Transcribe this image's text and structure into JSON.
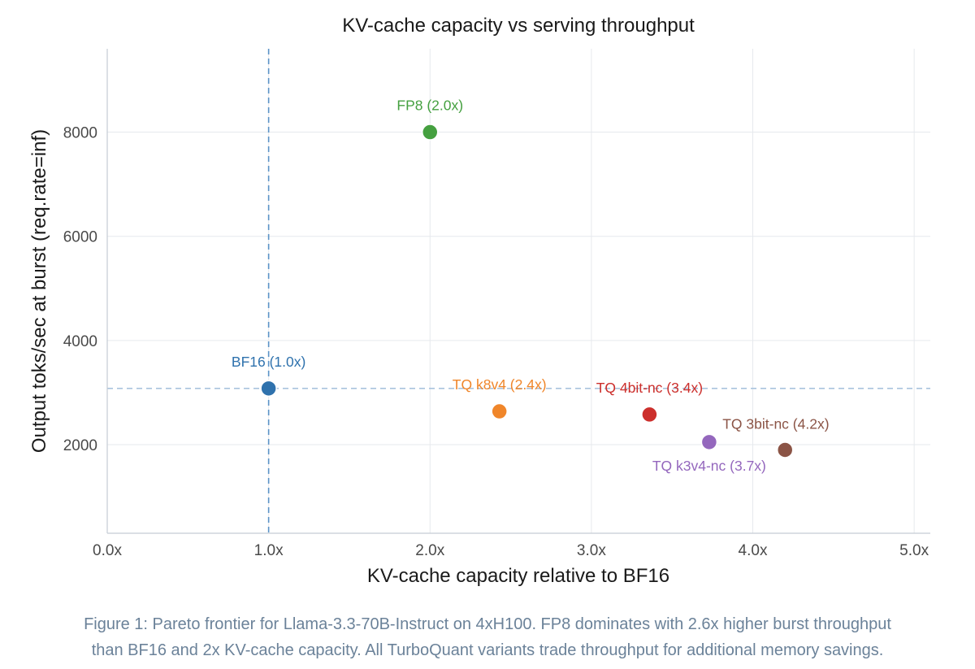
{
  "chart_data": {
    "type": "scatter",
    "title": "KV-cache capacity vs serving throughput",
    "xlabel": "KV-cache capacity relative to BF16",
    "ylabel": "Output toks/sec at burst (req.rate=inf)",
    "xlim": [
      0,
      5.1
    ],
    "ylim": [
      300,
      9600
    ],
    "x_ticks": [
      0,
      1,
      2,
      3,
      4,
      5
    ],
    "x_tick_labels": [
      "0.0x",
      "1.0x",
      "2.0x",
      "3.0x",
      "4.0x",
      "5.0x"
    ],
    "y_ticks": [
      2000,
      4000,
      6000,
      8000
    ],
    "y_tick_labels": [
      "2000",
      "4000",
      "6000",
      "8000"
    ],
    "grid": true,
    "reference_lines": {
      "x": 1.0,
      "y": 3080
    },
    "points": [
      {
        "label": "BF16  (1.0x)",
        "x": 1.0,
        "y": 3080,
        "color": "#2f72ad",
        "label_pos": "above"
      },
      {
        "label": "FP8  (2.0x)",
        "x": 2.0,
        "y": 8000,
        "color": "#45a040",
        "label_pos": "above"
      },
      {
        "label": "TQ k8v4  (2.4x)",
        "x": 2.43,
        "y": 2640,
        "color": "#f0862a",
        "label_pos": "above"
      },
      {
        "label": "TQ 4bit-nc  (3.4x)",
        "x": 3.36,
        "y": 2580,
        "color": "#cc2f2c",
        "label_pos": "above"
      },
      {
        "label": "TQ k3v4-nc  (3.7x)",
        "x": 3.73,
        "y": 2050,
        "color": "#9467bd",
        "label_pos": "below"
      },
      {
        "label": "TQ 3bit-nc  (4.2x)",
        "x": 4.2,
        "y": 1900,
        "color": "#8b5446",
        "label_pos": "above-right"
      }
    ]
  },
  "caption": {
    "line1": "Figure 1: Pareto frontier for Llama-3.3-70B-Instruct on 4xH100. FP8 dominates with 2.6x higher burst throughput",
    "line2": "than BF16 and 2x KV-cache capacity. All TurboQuant variants trade throughput for additional memory savings."
  }
}
